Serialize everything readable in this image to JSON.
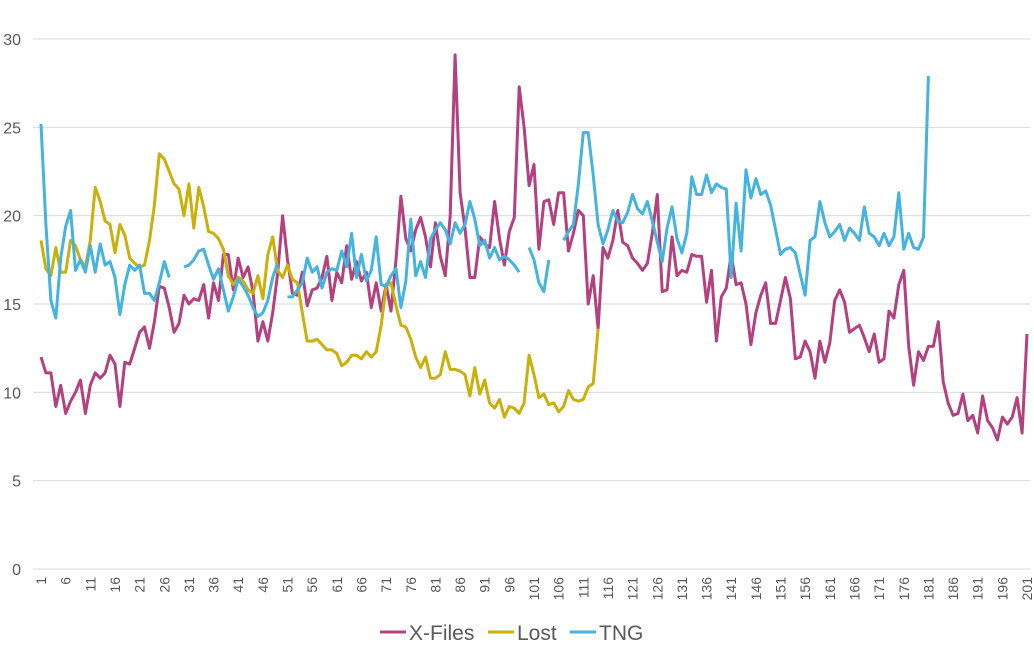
{
  "chart_data": {
    "type": "line",
    "title": "",
    "xlabel": "",
    "ylabel": "",
    "ylim": [
      0,
      30
    ],
    "yticks": [
      0,
      5,
      10,
      15,
      20,
      25,
      30
    ],
    "xlim": [
      1,
      201
    ],
    "xtick_step": 5,
    "grid": true,
    "legend_position": "bottom",
    "series": [
      {
        "name": "X-Files",
        "color": "#B5407F",
        "values": [
          12,
          11.1,
          11.1,
          9.2,
          10.4,
          8.8,
          9.5,
          10,
          10.7,
          8.8,
          10.4,
          11.1,
          10.8,
          11.1,
          12.1,
          11.6,
          9.2,
          11.7,
          11.6,
          12.5,
          13.4,
          13.7,
          12.5,
          14,
          16,
          15.9,
          14.8,
          13.4,
          13.9,
          15.5,
          15,
          15.3,
          15.2,
          16.1,
          14.2,
          16.2,
          15.2,
          17.8,
          17.8,
          15.8,
          17.6,
          16.5,
          17.1,
          15.7,
          12.9,
          14,
          12.9,
          14.5,
          16.7,
          20,
          17.5,
          15.6,
          15.5,
          16.8,
          14.9,
          15.8,
          15.9,
          16.5,
          17.7,
          15.2,
          16.8,
          16.2,
          18.3,
          16.4,
          17.4,
          16.3,
          16.8,
          14.8,
          16.2,
          14.6,
          16.1,
          14.6,
          17.5,
          21.1,
          18.7,
          18,
          19.2,
          19.9,
          18.8,
          17.1,
          19.6,
          17.7,
          16.6,
          20,
          29.1,
          21.3,
          19.3,
          16.5,
          16.5,
          18.8,
          18.4,
          18.2,
          20.8,
          18.7,
          17.2,
          19.1,
          19.9,
          27.3,
          25,
          21.7,
          22.9,
          18.1,
          20.8,
          20.9,
          19.5,
          21.3,
          21.3,
          18,
          19,
          20.3,
          20,
          15,
          16.6,
          13.6,
          18.2,
          17.6,
          18.6,
          20.3,
          18.5,
          18.3,
          17.6,
          17.3,
          16.9,
          17.3,
          19,
          21.2,
          15.7,
          15.8,
          18.8,
          16.6,
          16.9,
          16.8,
          17.8,
          17.7,
          17.7,
          15.1,
          16.9,
          12.9,
          15.4,
          15.9,
          17.8,
          16.1,
          16.2,
          15,
          12.7,
          14.5,
          15.5,
          16.2,
          13.9,
          13.9,
          15.2,
          16.5,
          15.3,
          11.9,
          12,
          12.9,
          12.3,
          10.8,
          12.9,
          11.7,
          12.8,
          15.2,
          15.8,
          15.1,
          13.4,
          13.6,
          13.8,
          13.1,
          12.3,
          13.3,
          11.7,
          11.9,
          14.6,
          14.2,
          16.1,
          16.9,
          12.6,
          10.4,
          12.3,
          11.8,
          12.6,
          12.6,
          14,
          10.6,
          9.4,
          8.7,
          8.8,
          9.9,
          8.4,
          8.7,
          7.7,
          9.8,
          8.4,
          8,
          7.3,
          8.6,
          8.2,
          8.6,
          9.7,
          7.7,
          13.3
        ]
      },
      {
        "name": "Lost",
        "color": "#C9B00A",
        "values": [
          18.6,
          17,
          16.6,
          18.2,
          16.8,
          16.8,
          18.6,
          18.3,
          17.5,
          17.1,
          18.6,
          21.6,
          20.8,
          19.7,
          19.5,
          17.9,
          19.5,
          18.9,
          17.6,
          17.3,
          17.1,
          17.2,
          18.6,
          20.6,
          23.5,
          23.2,
          22.5,
          21.8,
          21.5,
          20,
          21.8,
          19.3,
          21.6,
          20.5,
          19.1,
          19,
          18.7,
          18.1,
          16.6,
          16.1,
          16.5,
          16.3,
          15.8,
          15.6,
          16.6,
          15.3,
          17.8,
          18.8,
          16.9,
          16.5,
          17.2,
          16.4,
          16.2,
          14.5,
          12.9,
          12.9,
          13,
          12.7,
          12.4,
          12.4,
          12.2,
          11.5,
          11.7,
          12.1,
          12.1,
          11.9,
          12.3,
          12,
          12.3,
          13.8,
          16,
          16.2,
          14.9,
          13.8,
          13.7,
          13,
          12,
          11.4,
          12,
          10.8,
          10.8,
          11,
          12.3,
          11.3,
          11.3,
          11.2,
          11,
          9.8,
          11.4,
          9.9,
          10.7,
          9.4,
          9.1,
          9.6,
          8.6,
          9.2,
          9.1,
          8.8,
          9.4,
          12.1,
          11,
          9.7,
          9.9,
          9.3,
          9.4,
          8.9,
          9.2,
          10.1,
          9.6,
          9.5,
          9.6,
          10.3,
          10.5,
          13.6
        ]
      },
      {
        "name": "TNG",
        "color": "#45B3E0",
        "values": [
          25.2,
          19.5,
          15.2,
          14.2,
          17.6,
          19.4,
          20.3,
          16.9,
          17.5,
          16.8,
          18.3,
          16.8,
          18.4,
          17.2,
          17.4,
          16.5,
          14.4,
          16.1,
          17.2,
          16.9,
          17.2,
          15.6,
          15.6,
          15.2,
          16.2,
          17.4,
          16.5,
          null,
          null,
          17.1,
          17.2,
          17.5,
          18,
          18.1,
          17.2,
          16.4,
          17,
          15.8,
          14.6,
          15.4,
          16.4,
          16,
          15.5,
          14.8,
          14.3,
          14.5,
          15.2,
          16.5,
          17.3,
          null,
          15.4,
          15.4,
          15.8,
          16.2,
          17.6,
          16.8,
          17.1,
          15.9,
          16.8,
          17,
          16.9,
          18,
          17.1,
          19,
          16.5,
          17.8,
          16.3,
          16.9,
          18.8,
          16.1,
          16,
          16.6,
          17,
          14.8,
          16.3,
          19.8,
          16.6,
          17.4,
          16.5,
          18.7,
          19.2,
          19.6,
          19.2,
          18.4,
          19.6,
          19,
          19.5,
          20.8,
          19.8,
          18.3,
          18.6,
          17.6,
          18.2,
          17.5,
          17.7,
          17.5,
          17.2,
          16.8,
          null,
          18.2,
          17.5,
          16.2,
          15.7,
          17.5,
          null,
          null,
          18.6,
          19.1,
          19.5,
          21.8,
          24.7,
          24.7,
          22.3,
          19.5,
          18.4,
          19.2,
          20.3,
          19.7,
          19.6,
          20.2,
          21.2,
          20.4,
          20.1,
          20.8,
          19.7,
          18.5,
          17.4,
          19.3,
          20.5,
          18.7,
          17.9,
          19,
          22.2,
          21.2,
          21.2,
          22.3,
          21.3,
          21.8,
          21.6,
          21.5,
          16.5,
          20.7,
          18,
          22.6,
          21,
          22.1,
          21.2,
          21.4,
          20.6,
          19.2,
          17.8,
          18.1,
          18.2,
          17.9,
          16.7,
          15.5,
          18.6,
          18.8,
          20.8,
          19.6,
          18.8,
          19.1,
          19.5,
          18.6,
          19.3,
          19,
          18.6,
          20.5,
          19,
          18.8,
          18.3,
          19,
          18.3,
          18.8,
          21.3,
          18.1,
          19,
          18.2,
          18.1,
          18.8,
          27.9
        ]
      }
    ]
  }
}
